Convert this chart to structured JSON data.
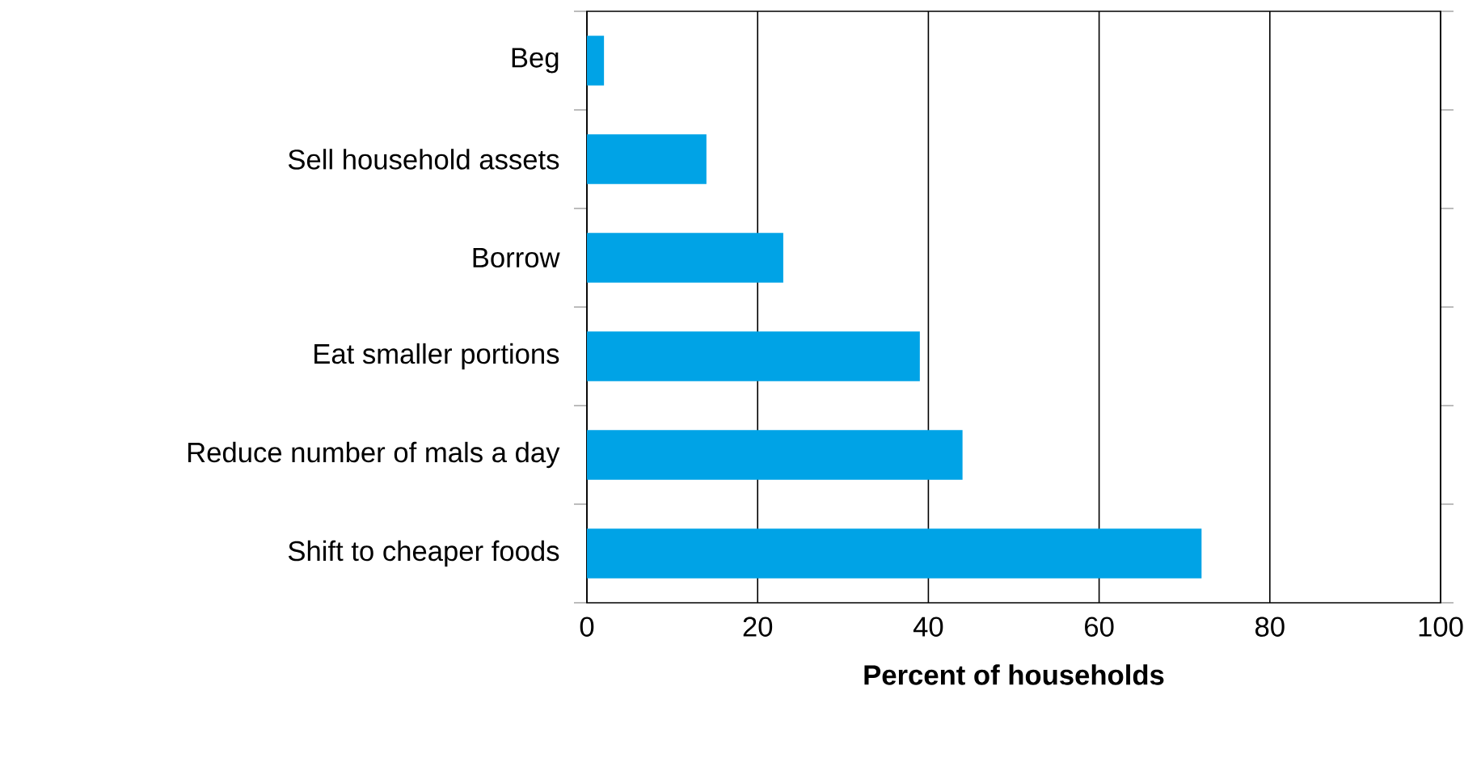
{
  "chart_data": {
    "type": "bar",
    "orientation": "horizontal",
    "categories": [
      "Beg",
      "Sell household assets",
      "Borrow",
      "Eat smaller portions",
      "Reduce number of mals a day",
      "Shift to cheaper foods"
    ],
    "values": [
      2,
      14,
      23,
      39,
      44,
      72
    ],
    "color": "#00a3e6",
    "xlabel": "Percent of households",
    "xlim": [
      0,
      100
    ],
    "xticks": [
      0,
      20,
      40,
      60,
      80,
      100
    ],
    "grid": "x"
  }
}
